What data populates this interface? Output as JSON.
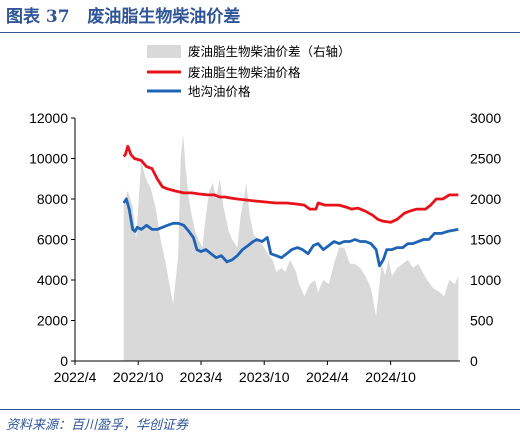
{
  "header": {
    "figure_label": "图表 37",
    "title": "废油脂生物柴油价差"
  },
  "source": "资料来源：百川盈孚，华创证券",
  "chart_data": {
    "type": "line",
    "x_ticks": [
      "2022/4",
      "2022/10",
      "2023/4",
      "2023/10",
      "2024/4",
      "2024/10"
    ],
    "x_range": [
      "2022-04-01",
      "2025-04-20"
    ],
    "y_left": {
      "range": [
        0,
        12000
      ],
      "ticks": [
        "0",
        "2000",
        "4000",
        "6000",
        "8000",
        "10000",
        "12000"
      ]
    },
    "y_right": {
      "range": [
        0,
        3000
      ],
      "ticks": [
        "0",
        "500",
        "1000",
        "1500",
        "2000",
        "2500",
        "3000"
      ]
    },
    "grid": false,
    "legend_position": "top",
    "series": [
      {
        "name": "废油脂生物柴油价差（右轴）",
        "type": "area",
        "axis": "right",
        "color": "#d9d9d9",
        "data": [
          [
            "2022-08-20",
            1950
          ],
          [
            "2022-09-01",
            2100
          ],
          [
            "2022-09-15",
            1900
          ],
          [
            "2022-09-25",
            1500
          ],
          [
            "2022-10-10",
            2480
          ],
          [
            "2022-10-20",
            2300
          ],
          [
            "2022-10-28",
            2200
          ],
          [
            "2022-11-05",
            2150
          ],
          [
            "2022-11-20",
            1900
          ],
          [
            "2022-12-05",
            1500
          ],
          [
            "2022-12-20",
            1200
          ],
          [
            "2022-12-28",
            1000
          ],
          [
            "2023-01-10",
            700
          ],
          [
            "2023-01-25",
            1300
          ],
          [
            "2023-02-01",
            2500
          ],
          [
            "2023-02-08",
            2800
          ],
          [
            "2023-02-15",
            2400
          ],
          [
            "2023-02-25",
            2000
          ],
          [
            "2023-03-05",
            1800
          ],
          [
            "2023-03-15",
            1600
          ],
          [
            "2023-03-25",
            1500
          ],
          [
            "2023-04-05",
            1400
          ],
          [
            "2023-04-15",
            1800
          ],
          [
            "2023-04-25",
            2100
          ],
          [
            "2023-05-05",
            2200
          ],
          [
            "2023-05-15",
            2000
          ],
          [
            "2023-05-25",
            2250
          ],
          [
            "2023-06-05",
            1900
          ],
          [
            "2023-06-20",
            1600
          ],
          [
            "2023-06-30",
            1500
          ],
          [
            "2023-07-15",
            1400
          ],
          [
            "2023-07-25",
            1800
          ],
          [
            "2023-08-05",
            2050
          ],
          [
            "2023-08-10",
            2200
          ],
          [
            "2023-08-20",
            1800
          ],
          [
            "2023-09-01",
            1550
          ],
          [
            "2023-09-15",
            1500
          ],
          [
            "2023-10-01",
            1400
          ],
          [
            "2023-10-15",
            1300
          ],
          [
            "2023-10-25",
            1250
          ],
          [
            "2023-11-05",
            1100
          ],
          [
            "2023-11-20",
            1150
          ],
          [
            "2023-12-01",
            1100
          ],
          [
            "2023-12-15",
            1250
          ],
          [
            "2024-01-01",
            1100
          ],
          [
            "2024-01-10",
            950
          ],
          [
            "2024-01-25",
            800
          ],
          [
            "2024-02-10",
            950
          ],
          [
            "2024-02-25",
            1000
          ],
          [
            "2024-03-05",
            850
          ],
          [
            "2024-03-20",
            1000
          ],
          [
            "2024-04-05",
            950
          ],
          [
            "2024-04-20",
            1200
          ],
          [
            "2024-05-05",
            1400
          ],
          [
            "2024-05-20",
            1400
          ],
          [
            "2024-06-05",
            1200
          ],
          [
            "2024-06-20",
            1200
          ],
          [
            "2024-07-05",
            1150
          ],
          [
            "2024-07-20",
            1050
          ],
          [
            "2024-08-05",
            900
          ],
          [
            "2024-08-20",
            550
          ],
          [
            "2024-09-05",
            1200
          ],
          [
            "2024-09-15",
            1050
          ],
          [
            "2024-09-25",
            1250
          ],
          [
            "2024-10-05",
            1050
          ],
          [
            "2024-10-20",
            1150
          ],
          [
            "2024-11-05",
            1200
          ],
          [
            "2024-11-20",
            1250
          ],
          [
            "2024-12-05",
            1150
          ],
          [
            "2024-12-20",
            1200
          ],
          [
            "2025-01-01",
            1100
          ],
          [
            "2025-01-15",
            1000
          ],
          [
            "2025-02-01",
            900
          ],
          [
            "2025-02-20",
            850
          ],
          [
            "2025-03-05",
            800
          ],
          [
            "2025-03-20",
            1000
          ],
          [
            "2025-04-05",
            950
          ],
          [
            "2025-04-15",
            1050
          ]
        ]
      },
      {
        "name": "废油脂生物柴油价格",
        "type": "line",
        "axis": "left",
        "color": "#e8131a",
        "data": [
          [
            "2022-08-20",
            10100
          ],
          [
            "2022-08-25",
            10200
          ],
          [
            "2022-09-01",
            10600
          ],
          [
            "2022-09-10",
            10200
          ],
          [
            "2022-09-20",
            10000
          ],
          [
            "2022-10-10",
            9900
          ],
          [
            "2022-10-25",
            9600
          ],
          [
            "2022-11-10",
            9500
          ],
          [
            "2022-11-25",
            9000
          ],
          [
            "2022-12-10",
            8600
          ],
          [
            "2022-12-25",
            8500
          ],
          [
            "2023-01-15",
            8400
          ],
          [
            "2023-02-10",
            8300
          ],
          [
            "2023-03-05",
            8300
          ],
          [
            "2023-03-25",
            8250
          ],
          [
            "2023-04-20",
            8200
          ],
          [
            "2023-05-10",
            8200
          ],
          [
            "2023-05-25",
            8100
          ],
          [
            "2023-06-10",
            8100
          ],
          [
            "2023-06-25",
            8050
          ],
          [
            "2023-07-15",
            8000
          ],
          [
            "2023-08-10",
            7950
          ],
          [
            "2023-09-05",
            7900
          ],
          [
            "2023-10-05",
            7850
          ],
          [
            "2023-11-05",
            7800
          ],
          [
            "2023-12-05",
            7800
          ],
          [
            "2024-01-05",
            7750
          ],
          [
            "2024-01-25",
            7700
          ],
          [
            "2024-02-10",
            7500
          ],
          [
            "2024-02-28",
            7500
          ],
          [
            "2024-03-05",
            7800
          ],
          [
            "2024-03-25",
            7700
          ],
          [
            "2024-04-10",
            7700
          ],
          [
            "2024-05-05",
            7700
          ],
          [
            "2024-05-25",
            7600
          ],
          [
            "2024-06-10",
            7500
          ],
          [
            "2024-06-28",
            7550
          ],
          [
            "2024-07-20",
            7400
          ],
          [
            "2024-08-10",
            7200
          ],
          [
            "2024-08-25",
            7000
          ],
          [
            "2024-09-10",
            6900
          ],
          [
            "2024-10-01",
            6850
          ],
          [
            "2024-10-20",
            7000
          ],
          [
            "2024-11-10",
            7300
          ],
          [
            "2024-11-25",
            7400
          ],
          [
            "2024-12-15",
            7500
          ],
          [
            "2025-01-10",
            7500
          ],
          [
            "2025-01-25",
            7700
          ],
          [
            "2025-02-10",
            8000
          ],
          [
            "2025-03-01",
            8000
          ],
          [
            "2025-03-20",
            8200
          ],
          [
            "2025-04-15",
            8200
          ]
        ]
      },
      {
        "name": "地沟油价格",
        "type": "line",
        "axis": "left",
        "color": "#1f63b5",
        "data": [
          [
            "2022-08-20",
            7800
          ],
          [
            "2022-08-28",
            8000
          ],
          [
            "2022-09-05",
            7500
          ],
          [
            "2022-09-15",
            6500
          ],
          [
            "2022-09-22",
            6400
          ],
          [
            "2022-09-28",
            6600
          ],
          [
            "2022-10-10",
            6500
          ],
          [
            "2022-10-25",
            6700
          ],
          [
            "2022-11-10",
            6500
          ],
          [
            "2022-11-25",
            6500
          ],
          [
            "2022-12-10",
            6600
          ],
          [
            "2022-12-25",
            6700
          ],
          [
            "2023-01-10",
            6800
          ],
          [
            "2023-01-25",
            6800
          ],
          [
            "2023-02-10",
            6700
          ],
          [
            "2023-02-25",
            6400
          ],
          [
            "2023-03-10",
            6100
          ],
          [
            "2023-03-20",
            5500
          ],
          [
            "2023-04-01",
            5400
          ],
          [
            "2023-04-15",
            5500
          ],
          [
            "2023-04-30",
            5300
          ],
          [
            "2023-05-15",
            5100
          ],
          [
            "2023-05-30",
            5200
          ],
          [
            "2023-06-15",
            4900
          ],
          [
            "2023-06-30",
            5000
          ],
          [
            "2023-07-15",
            5200
          ],
          [
            "2023-07-30",
            5500
          ],
          [
            "2023-08-15",
            5700
          ],
          [
            "2023-08-30",
            5900
          ],
          [
            "2023-09-10",
            6000
          ],
          [
            "2023-09-25",
            5900
          ],
          [
            "2023-10-10",
            6100
          ],
          [
            "2023-10-20",
            5300
          ],
          [
            "2023-11-05",
            5200
          ],
          [
            "2023-11-20",
            5100
          ],
          [
            "2023-12-05",
            5300
          ],
          [
            "2023-12-20",
            5500
          ],
          [
            "2024-01-05",
            5600
          ],
          [
            "2024-01-20",
            5500
          ],
          [
            "2024-02-05",
            5300
          ],
          [
            "2024-02-20",
            5700
          ],
          [
            "2024-03-05",
            5800
          ],
          [
            "2024-03-20",
            5500
          ],
          [
            "2024-04-05",
            5700
          ],
          [
            "2024-04-20",
            5900
          ],
          [
            "2024-05-05",
            5800
          ],
          [
            "2024-05-20",
            5900
          ],
          [
            "2024-06-05",
            5900
          ],
          [
            "2024-06-20",
            6000
          ],
          [
            "2024-07-05",
            5900
          ],
          [
            "2024-07-20",
            5900
          ],
          [
            "2024-08-05",
            5800
          ],
          [
            "2024-08-20",
            5500
          ],
          [
            "2024-08-30",
            4700
          ],
          [
            "2024-09-10",
            5000
          ],
          [
            "2024-09-20",
            5500
          ],
          [
            "2024-10-05",
            5500
          ],
          [
            "2024-10-20",
            5600
          ],
          [
            "2024-11-05",
            5600
          ],
          [
            "2024-11-20",
            5800
          ],
          [
            "2024-12-05",
            5800
          ],
          [
            "2024-12-20",
            5900
          ],
          [
            "2025-01-05",
            6000
          ],
          [
            "2025-01-20",
            6000
          ],
          [
            "2025-02-05",
            6300
          ],
          [
            "2025-02-25",
            6300
          ],
          [
            "2025-03-15",
            6400
          ],
          [
            "2025-04-15",
            6500
          ]
        ]
      }
    ]
  }
}
